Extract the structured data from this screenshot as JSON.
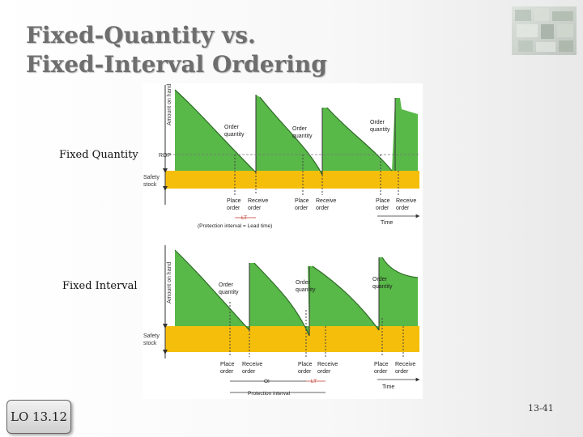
{
  "slide": {
    "title_line1": "Fixed-Quantity vs.",
    "title_line2": "Fixed-Interval Ordering",
    "label_fixed_quantity": "Fixed Quantity",
    "label_fixed_interval": "Fixed  Interval",
    "lo_badge": "LO 13.12",
    "page_number": "13-41"
  },
  "colors": {
    "inventory_fill": "#58b848",
    "safety_stock_fill": "#f5be0b",
    "title": "#6e6e6e"
  },
  "top_diagram": {
    "y_axis": "Amount on hand",
    "rop": "ROP",
    "safety_stock_line1": "Safety",
    "safety_stock_line2": "stock",
    "oq1a": "Order",
    "oq1b": "quantity",
    "oq2a": "Order",
    "oq2b": "quantity",
    "oq3a": "Order",
    "oq3b": "quantity",
    "place1a": "Place",
    "place1b": "order",
    "receive1a": "Receive",
    "receive1b": "order",
    "place2a": "Place",
    "place2b": "order",
    "receive2a": "Receive",
    "receive2b": "order",
    "place3a": "Place",
    "place3b": "order",
    "receive3a": "Receive",
    "receive3b": "order",
    "lt": "LT",
    "protection_note": "(Protection interval = Lead time)",
    "time": "Time"
  },
  "bottom_diagram": {
    "y_axis": "Amount on hand",
    "safety_stock_line1": "Safety",
    "safety_stock_line2": "stock",
    "oq1a": "Order",
    "oq1b": "quantity",
    "oq2a": "Order",
    "oq2b": "quantity",
    "oq3a": "Order",
    "oq3b": "quantity",
    "place1a": "Place",
    "place1b": "order",
    "receive1a": "Receive",
    "receive1b": "order",
    "place2a": "Place",
    "place2b": "order",
    "receive2a": "Receive",
    "receive2b": "order",
    "place3a": "Place",
    "place3b": "order",
    "receive3a": "Receive",
    "receive3b": "order",
    "oi": "OI",
    "lt": "LT",
    "protection_interval": "Protection interval",
    "time": "Time"
  }
}
